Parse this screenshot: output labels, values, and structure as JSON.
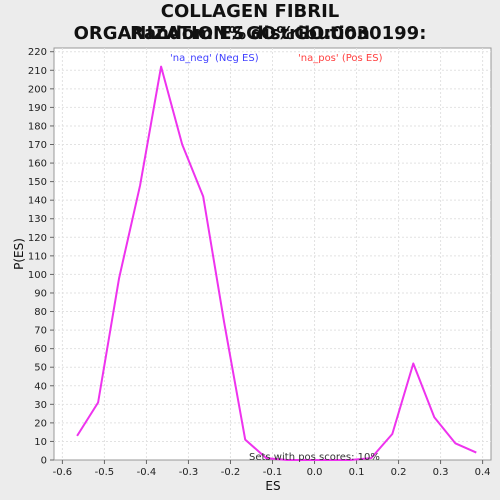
{
  "title_line1": "COLLAGEN FIBRIL ORGANIZATION%GO%GO:0030199:",
  "title_line2": "Random ES distribution",
  "chart_data": {
    "type": "line",
    "xlabel": "ES",
    "ylabel": "P(ES)",
    "xlim": [
      -0.62,
      0.42
    ],
    "ylim": [
      0,
      222
    ],
    "xticks": [
      -0.6,
      -0.5,
      -0.4,
      -0.3,
      -0.2,
      -0.1,
      0.0,
      0.1,
      0.2,
      0.3,
      0.4
    ],
    "xtick_labels": [
      "-0.6",
      "-0.5",
      "-0.4",
      "-0.3",
      "-0.2",
      "-0.1",
      "0.0",
      "0.1",
      "0.2",
      "0.3",
      "0.4"
    ],
    "yticks": [
      0,
      10,
      20,
      30,
      40,
      50,
      60,
      70,
      80,
      90,
      100,
      110,
      120,
      130,
      140,
      150,
      160,
      170,
      180,
      190,
      200,
      210,
      220
    ],
    "grid": true,
    "legend": [
      {
        "label": "'na_neg' (Neg ES)",
        "color": "#4040ff"
      },
      {
        "label": "'na_pos' (Pos ES)",
        "color": "#ff4040"
      }
    ],
    "annotation": "Sets with pos scores: 10%",
    "series": [
      {
        "color": "#ee33ee",
        "x": [
          -0.565,
          -0.515,
          -0.465,
          -0.415,
          -0.365,
          -0.315,
          -0.265,
          -0.215,
          -0.165,
          -0.115,
          -0.065,
          -0.015,
          0.035,
          0.085,
          0.135,
          0.185,
          0.235,
          0.285,
          0.335,
          0.385
        ],
        "y": [
          13,
          31,
          98,
          148,
          212,
          170,
          142,
          74,
          11,
          1,
          0,
          0,
          0,
          0,
          1,
          14,
          52,
          23,
          9,
          4
        ]
      }
    ]
  }
}
